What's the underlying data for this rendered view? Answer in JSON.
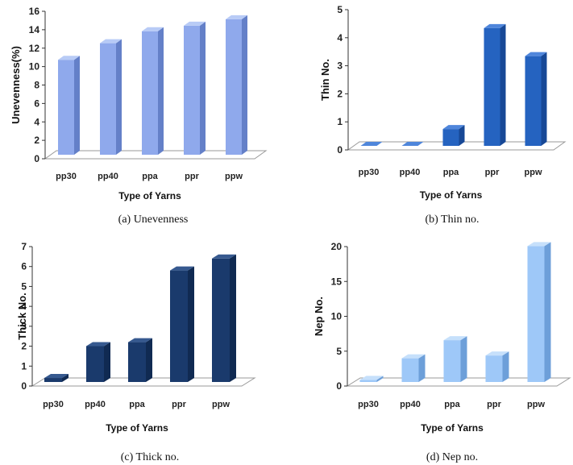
{
  "chart_data": [
    {
      "type": "bar",
      "caption": "(a) Unevenness",
      "categories": [
        "pp30",
        "pp40",
        "ppa",
        "ppr",
        "ppw"
      ],
      "values": [
        10.3,
        12.1,
        13.4,
        14.0,
        14.7
      ],
      "xlabel": "Type of Yarns",
      "ylabel": "Unevenness(%)",
      "ylim": [
        0,
        16
      ],
      "yticks": [
        "0",
        "2",
        "4",
        "6",
        "8",
        "10",
        "12",
        "14",
        "16"
      ],
      "colors": {
        "front": "#8fa9ec",
        "side": "#6480c8",
        "top": "#b8cbf6"
      }
    },
    {
      "type": "bar",
      "caption": "(b) Thin no.",
      "categories": [
        "pp30",
        "pp40",
        "ppa",
        "ppr",
        "ppw"
      ],
      "values": [
        0,
        0,
        0.6,
        4.2,
        3.2
      ],
      "xlabel": "Type of Yarns",
      "ylabel": "Thin No.",
      "ylim": [
        0,
        5
      ],
      "yticks": [
        "0",
        "1",
        "2",
        "3",
        "4",
        "5"
      ],
      "colors": {
        "front": "#2563c0",
        "side": "#174896",
        "top": "#4f86db"
      }
    },
    {
      "type": "bar",
      "caption": "(c) Thick no.",
      "categories": [
        "pp30",
        "pp40",
        "ppa",
        "ppr",
        "ppw"
      ],
      "values": [
        0.2,
        1.8,
        2.0,
        5.6,
        6.2
      ],
      "xlabel": "Type of Yarns",
      "ylabel": "Thick No.",
      "ylim": [
        0,
        7
      ],
      "yticks": [
        "0",
        "1",
        "2",
        "3",
        "4",
        "5",
        "6",
        "7"
      ],
      "colors": {
        "front": "#1a3a6c",
        "side": "#102a52",
        "top": "#36598f"
      }
    },
    {
      "type": "bar",
      "caption": "(d) Nep no.",
      "categories": [
        "pp30",
        "pp40",
        "ppa",
        "ppr",
        "ppw"
      ],
      "values": [
        0.3,
        3.4,
        6.0,
        3.8,
        19.5
      ],
      "xlabel": "Type of Yarns",
      "ylabel": "Nep No.",
      "ylim": [
        0,
        20
      ],
      "yticks": [
        "0",
        "5",
        "10",
        "15",
        "20"
      ],
      "colors": {
        "front": "#9ec8f8",
        "side": "#6d9fd9",
        "top": "#c6e0fb"
      }
    }
  ]
}
